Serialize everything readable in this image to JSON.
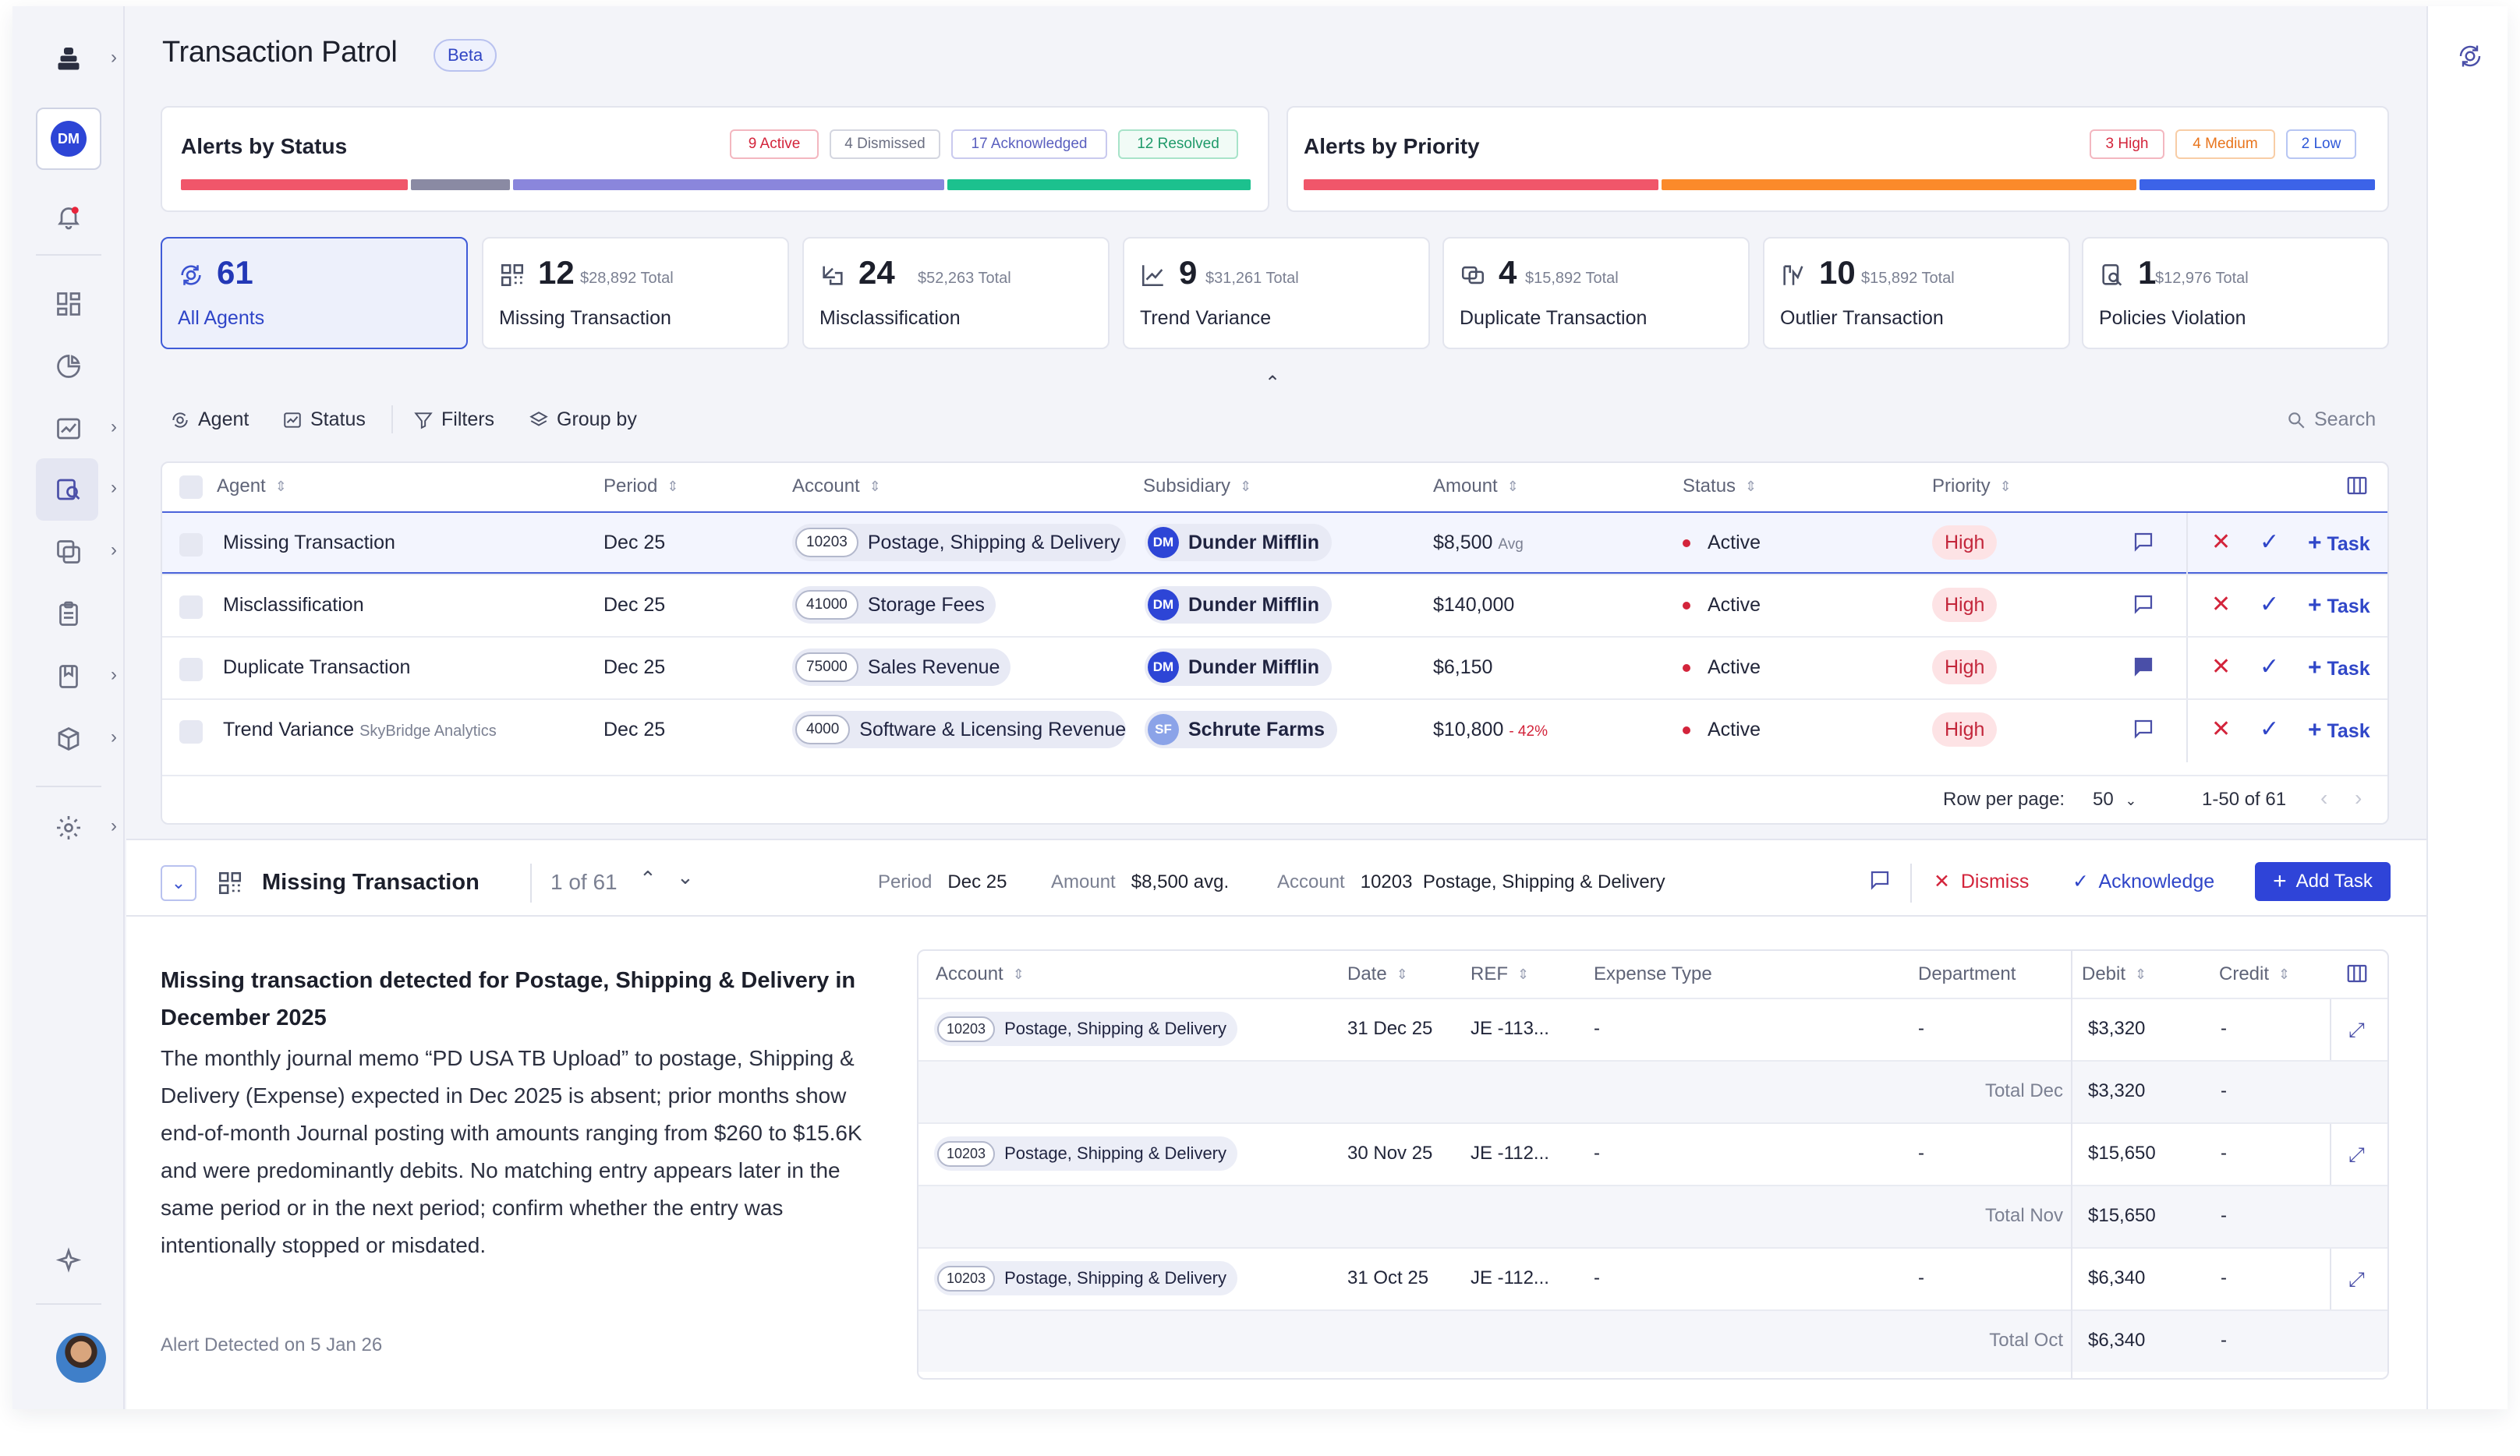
{
  "header": {
    "title": "Transaction Patrol",
    "badge": "Beta"
  },
  "alerts_by_status": {
    "title": "Alerts by Status",
    "pills": [
      {
        "label": "9 Active",
        "color": "#d3243b"
      },
      {
        "label": "4 Dismissed",
        "color": "#6b6f82"
      },
      {
        "label": "17 Acknowledged",
        "color": "#5a5fbf"
      },
      {
        "label": "12 Resolved",
        "color": "#1f9a6a"
      }
    ],
    "segments": [
      {
        "status": "Active",
        "count": 9,
        "color": "#f0566a"
      },
      {
        "status": "Dismissed",
        "count": 4,
        "color": "#8a8aa3"
      },
      {
        "status": "Acknowledged",
        "count": 17,
        "color": "#8a86dc"
      },
      {
        "status": "Resolved",
        "count": 12,
        "color": "#1cc18e"
      }
    ]
  },
  "alerts_by_priority": {
    "title": "Alerts by Priority",
    "pills": [
      {
        "label": "3 High",
        "color": "#d3243b"
      },
      {
        "label": "4 Medium",
        "color": "#e8741c"
      },
      {
        "label": "2 Low",
        "color": "#2f58d8"
      }
    ],
    "segments": [
      {
        "priority": "High",
        "count": 3,
        "color": "#f0566a"
      },
      {
        "priority": "Medium",
        "count": 4,
        "color": "#fb8a2a"
      },
      {
        "priority": "Low",
        "count": 2,
        "color": "#3c63e8"
      }
    ]
  },
  "agent_cards": [
    {
      "count": "61",
      "total": "",
      "label": "All Agents",
      "icon": "patrol-icon",
      "selected": true
    },
    {
      "count": "12",
      "total": "$28,892 Total",
      "label": "Missing Transaction",
      "icon": "grid-dots-icon"
    },
    {
      "count": "24",
      "total": "$52,263 Total",
      "label": "Misclassification",
      "icon": "redirect-icon"
    },
    {
      "count": "9",
      "total": "$31,261 Total",
      "label": "Trend Variance",
      "icon": "trend-icon"
    },
    {
      "count": "4",
      "total": "$15,892 Total",
      "label": "Duplicate Transaction",
      "icon": "duplicate-icon"
    },
    {
      "count": "10",
      "total": "$15,892 Total",
      "label": "Outlier Transaction",
      "icon": "outlier-icon"
    },
    {
      "count": "1",
      "total": "$12,976 Total",
      "label": "Policies Violation",
      "icon": "policy-icon"
    }
  ],
  "toolbar": {
    "agent": "Agent",
    "status": "Status",
    "filters": "Filters",
    "group_by": "Group by",
    "search_placeholder": "Search"
  },
  "table": {
    "headers": {
      "agent": "Agent",
      "period": "Period",
      "account": "Account",
      "subsidiary": "Subsidiary",
      "amount": "Amount",
      "status": "Status",
      "priority": "Priority"
    },
    "rows": [
      {
        "agent": "Missing Transaction",
        "agent_sub": "",
        "period": "Dec 25",
        "acct_num": "10203",
        "acct_name": "Postage, Shipping & Delivery",
        "sub_initials": "DM",
        "sub_name": "Dunder Mifflin",
        "sub_color": "#2d45d6",
        "amount": "$8,500",
        "amount_note": "Avg",
        "amount_note_color": "#7b8092",
        "status": "Active",
        "priority": "High",
        "task": "Task",
        "comment_filled": false
      },
      {
        "agent": "Misclassification",
        "agent_sub": "",
        "period": "Dec 25",
        "acct_num": "41000",
        "acct_name": "Storage Fees",
        "sub_initials": "DM",
        "sub_name": "Dunder Mifflin",
        "sub_color": "#2d45d6",
        "amount": "$140,000",
        "amount_note": "",
        "amount_note_color": "#7b8092",
        "status": "Active",
        "priority": "High",
        "task": "Task",
        "comment_filled": false
      },
      {
        "agent": "Duplicate Transaction",
        "agent_sub": "",
        "period": "Dec 25",
        "acct_num": "75000",
        "acct_name": "Sales Revenue",
        "sub_initials": "DM",
        "sub_name": "Dunder Mifflin",
        "sub_color": "#2d45d6",
        "amount": "$6,150",
        "amount_note": "",
        "amount_note_color": "#7b8092",
        "status": "Active",
        "priority": "High",
        "task": "Task",
        "comment_filled": true
      },
      {
        "agent": "Trend Variance",
        "agent_sub": "SkyBridge Analytics",
        "period": "Dec 25",
        "acct_num": "4000",
        "acct_name": "Software & Licensing Revenue",
        "sub_initials": "SF",
        "sub_name": "Schrute Farms",
        "sub_color": "#8ba3e8",
        "amount": "$10,800",
        "amount_note": "- 42%",
        "amount_note_color": "#d3243b",
        "status": "Active",
        "priority": "High",
        "task": "Task",
        "comment_filled": false
      }
    ],
    "pagination": {
      "rows_label": "Row per page:",
      "rows_value": "50",
      "range": "1-50 of 61"
    }
  },
  "detail": {
    "title": "Missing Transaction",
    "position": "1 of 61",
    "period_label": "Period",
    "period_value": "Dec 25",
    "amount_label": "Amount",
    "amount_value": "$8,500 avg.",
    "account_label": "Account",
    "account_num": "10203",
    "account_name": "Postage, Shipping & Delivery",
    "dismiss": "Dismiss",
    "acknowledge": "Acknowledge",
    "add_task": "Add Task",
    "heading": "Missing transaction detected for Postage, Shipping & Delivery in December 2025",
    "body": "The monthly journal memo “PD USA TB Upload” to postage, Shipping & Delivery (Expense) expected in Dec 2025 is absent; prior months show end-of-month Journal posting with amounts ranging from $260 to $15.6K and were predominantly debits. No matching entry appears later in the same period or in the next period; confirm whether the entry was intentionally stopped or misdated.",
    "detected": "Alert Detected on 5 Jan 26"
  },
  "entries": {
    "headers": {
      "account": "Account",
      "date": "Date",
      "ref": "REF",
      "expense_type": "Expense Type",
      "department": "Department",
      "debit": "Debit",
      "credit": "Credit"
    },
    "groups": [
      {
        "acct_num": "10203",
        "acct_name": "Postage, Shipping & Delivery",
        "date": "31 Dec 25",
        "ref": "JE -113...",
        "expense_type": "-",
        "department": "-",
        "debit": "$3,320",
        "credit": "-",
        "total_label": "Total Dec",
        "total_debit": "$3,320",
        "total_credit": "-"
      },
      {
        "acct_num": "10203",
        "acct_name": "Postage, Shipping & Delivery",
        "date": "30 Nov 25",
        "ref": "JE -112...",
        "expense_type": "-",
        "department": "-",
        "debit": "$15,650",
        "credit": "-",
        "total_label": "Total Nov",
        "total_debit": "$15,650",
        "total_credit": "-"
      },
      {
        "acct_num": "10203",
        "acct_name": "Postage, Shipping & Delivery",
        "date": "31 Oct 25",
        "ref": "JE -112...",
        "expense_type": "-",
        "department": "-",
        "debit": "$6,340",
        "credit": "-",
        "total_label": "Total Oct",
        "total_debit": "$6,340",
        "total_credit": "-"
      }
    ]
  },
  "sidebar": {
    "workspace_initials": "DM"
  }
}
